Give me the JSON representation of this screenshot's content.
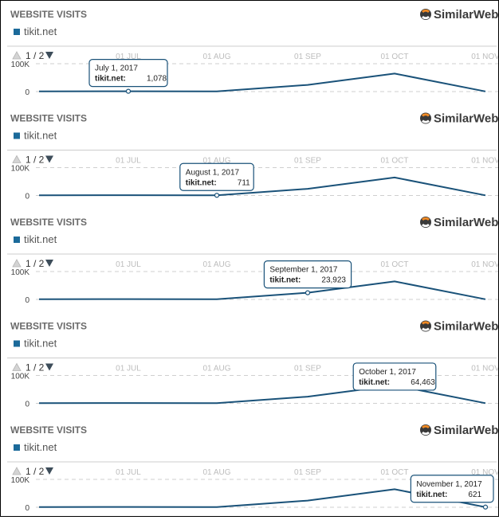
{
  "colors": {
    "series": "#1a5279",
    "legend_marker": "#1b6a9a",
    "grid": "#cfcfcf",
    "divider": "#cccccc",
    "pager_arrow": "#3d4d5a",
    "logo_orange": "#f08a24",
    "logo_dark": "#3a3a3a"
  },
  "icons": {
    "prev": "triangle-up-icon",
    "next": "triangle-down-icon",
    "logo": "similarweb-logo-icon"
  },
  "panels": [
    {
      "title": "WEBSITE VISITS",
      "brand": "SimilarWeb",
      "legend": "tikit.net",
      "pager": "1 / 2",
      "tooltip": {
        "index": 0,
        "date": "July 1, 2017",
        "series": "tikit.net:",
        "value": "1,078"
      }
    },
    {
      "title": "WEBSITE VISITS",
      "brand": "SimilarWeb",
      "legend": "tikit.net",
      "pager": "1 / 2",
      "tooltip": {
        "index": 1,
        "date": "August 1, 2017",
        "series": "tikit.net:",
        "value": "711"
      }
    },
    {
      "title": "WEBSITE VISITS",
      "brand": "SimilarWeb",
      "legend": "tikit.net",
      "pager": "1 / 2",
      "tooltip": {
        "index": 2,
        "date": "September 1, 2017",
        "series": "tikit.net:",
        "value": "23,923"
      }
    },
    {
      "title": "WEBSITE VISITS",
      "brand": "SimilarWeb",
      "legend": "tikit.net",
      "pager": "1 / 2",
      "tooltip": {
        "index": 3,
        "date": "October 1, 2017",
        "series": "tikit.net:",
        "value": "64,463"
      }
    },
    {
      "title": "WEBSITE VISITS",
      "brand": "SimilarWeb",
      "legend": "tikit.net",
      "pager": "1 / 2",
      "tooltip": {
        "index": 4,
        "date": "November 1, 2017",
        "series": "tikit.net:",
        "value": "621"
      }
    }
  ],
  "chart_data": {
    "type": "line",
    "title": "WEBSITE VISITS",
    "x_tick_labels": [
      "01 JUL",
      "01 AUG",
      "01 SEP",
      "01 OCT",
      "01 NOV"
    ],
    "y_tick_labels": [
      "0",
      "100K"
    ],
    "ylim": [
      0,
      100000
    ],
    "grid": true,
    "legend_position": "top-left",
    "series": [
      {
        "name": "tikit.net",
        "x": [
          "2017-06-01",
          "2017-07-01",
          "2017-08-01",
          "2017-09-01",
          "2017-10-01",
          "2017-11-01"
        ],
        "values": [
          1000,
          1078,
          711,
          23923,
          64463,
          621
        ]
      }
    ]
  }
}
